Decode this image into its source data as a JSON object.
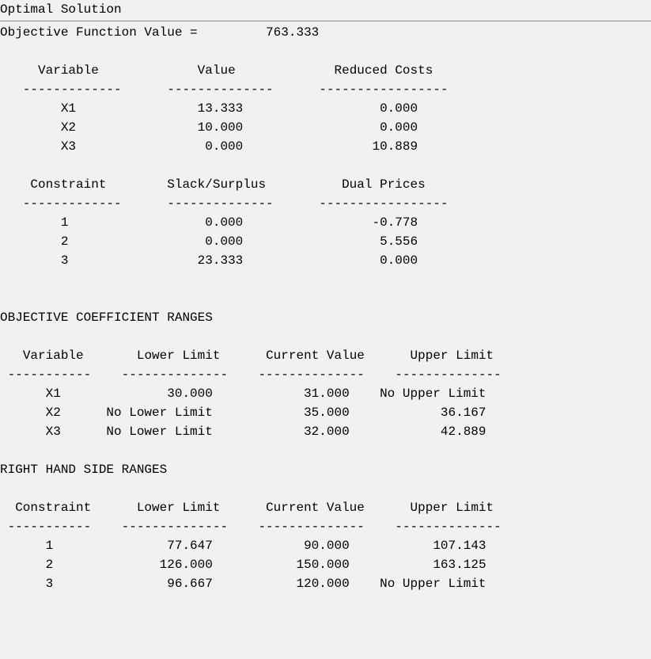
{
  "title": "Optimal Solution",
  "objective_label": "Objective Function Value =",
  "objective_value": "763.333",
  "variables_section": {
    "headers": {
      "variable": "Variable",
      "value": "Value",
      "reduced_costs": "Reduced Costs"
    },
    "rows": [
      {
        "variable": "X1",
        "value": "13.333",
        "reduced_costs": "0.000"
      },
      {
        "variable": "X2",
        "value": "10.000",
        "reduced_costs": "0.000"
      },
      {
        "variable": "X3",
        "value": "0.000",
        "reduced_costs": "10.889"
      }
    ]
  },
  "constraints_section": {
    "headers": {
      "constraint": "Constraint",
      "slack": "Slack/Surplus",
      "dual": "Dual Prices"
    },
    "rows": [
      {
        "constraint": "1",
        "slack": "0.000",
        "dual": "-0.778"
      },
      {
        "constraint": "2",
        "slack": "0.000",
        "dual": "5.556"
      },
      {
        "constraint": "3",
        "slack": "23.333",
        "dual": "0.000"
      }
    ]
  },
  "obj_coef_ranges": {
    "title": "OBJECTIVE COEFFICIENT RANGES",
    "headers": {
      "variable": "Variable",
      "lower": "Lower Limit",
      "current": "Current Value",
      "upper": "Upper Limit"
    },
    "rows": [
      {
        "variable": "X1",
        "lower": "30.000",
        "current": "31.000",
        "upper": "No Upper Limit"
      },
      {
        "variable": "X2",
        "lower": "No Lower Limit",
        "current": "35.000",
        "upper": "36.167"
      },
      {
        "variable": "X3",
        "lower": "No Lower Limit",
        "current": "32.000",
        "upper": "42.889"
      }
    ]
  },
  "rhs_ranges": {
    "title": "RIGHT HAND SIDE RANGES",
    "headers": {
      "constraint": "Constraint",
      "lower": "Lower Limit",
      "current": "Current Value",
      "upper": "Upper Limit"
    },
    "rows": [
      {
        "constraint": "1",
        "lower": "77.647",
        "current": "90.000",
        "upper": "107.143"
      },
      {
        "constraint": "2",
        "lower": "126.000",
        "current": "150.000",
        "upper": "163.125"
      },
      {
        "constraint": "3",
        "lower": "96.667",
        "current": "120.000",
        "upper": "No Upper Limit"
      }
    ]
  },
  "layout": {
    "background_color": "#f1f1f1",
    "text_color": "#000000",
    "rule_color": "#8a8a8a",
    "font_family": "Courier New",
    "font_size_pt": 12,
    "columns_variables": {
      "c1_w": 16,
      "c2_w": 20,
      "c3_w": 26
    },
    "columns_ranges": {
      "c1_w": 14,
      "c2_w": 18,
      "c3_w": 18,
      "c4_w": 18
    }
  }
}
